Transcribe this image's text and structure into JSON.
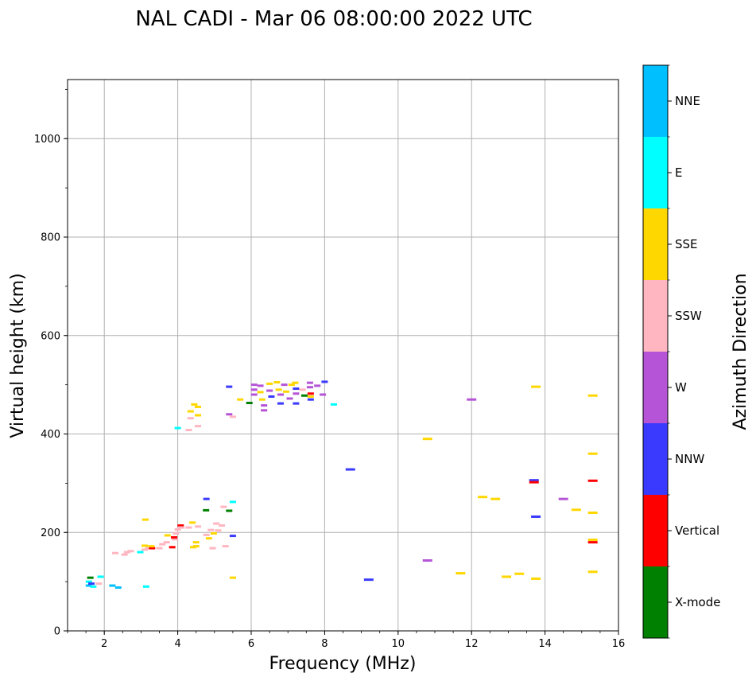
{
  "chart_data": {
    "type": "scatter",
    "title": "NAL CADI - Mar 06 08:00:00 2022 UTC",
    "xlabel": "Frequency (MHz)",
    "ylabel": "Virtual height (km)",
    "xlim": [
      1.0,
      16.0
    ],
    "ylim": [
      0,
      1120
    ],
    "x_ticks": [
      2,
      4,
      6,
      8,
      10,
      12,
      14,
      16
    ],
    "y_ticks": [
      0,
      200,
      400,
      600,
      800,
      1000
    ],
    "grid": true,
    "colorbar": {
      "label": "Azimuth Direction",
      "categories": [
        {
          "name": "X-mode",
          "color": "#008000"
        },
        {
          "name": "Vertical",
          "color": "#ff0000"
        },
        {
          "name": "NNW",
          "color": "#3a3aff"
        },
        {
          "name": "W",
          "color": "#b554d6"
        },
        {
          "name": "SSW",
          "color": "#ffb6c1"
        },
        {
          "name": "SSE",
          "color": "#ffd700"
        },
        {
          "name": "E",
          "color": "#00ffff"
        },
        {
          "name": "NNE",
          "color": "#00bfff"
        }
      ]
    },
    "points": [
      {
        "f": 1.58,
        "h": 92,
        "dir": "NNE"
      },
      {
        "f": 1.58,
        "h": 100,
        "dir": "E"
      },
      {
        "f": 1.62,
        "h": 108,
        "dir": "X-mode"
      },
      {
        "f": 1.65,
        "h": 96,
        "dir": "NNW"
      },
      {
        "f": 1.7,
        "h": 90,
        "dir": "E"
      },
      {
        "f": 1.85,
        "h": 96,
        "dir": "SSW"
      },
      {
        "f": 1.9,
        "h": 110,
        "dir": "E"
      },
      {
        "f": 2.22,
        "h": 92,
        "dir": "NNE"
      },
      {
        "f": 2.38,
        "h": 88,
        "dir": "NNE"
      },
      {
        "f": 3.14,
        "h": 90,
        "dir": "E"
      },
      {
        "f": 2.3,
        "h": 158,
        "dir": "SSW"
      },
      {
        "f": 2.55,
        "h": 155,
        "dir": "SSW"
      },
      {
        "f": 2.62,
        "h": 160,
        "dir": "SSW"
      },
      {
        "f": 2.72,
        "h": 162,
        "dir": "SSW"
      },
      {
        "f": 2.98,
        "h": 160,
        "dir": "E"
      },
      {
        "f": 3.1,
        "h": 165,
        "dir": "SSW"
      },
      {
        "f": 3.2,
        "h": 168,
        "dir": "SSW"
      },
      {
        "f": 3.3,
        "h": 168,
        "dir": "Vertical"
      },
      {
        "f": 3.5,
        "h": 168,
        "dir": "SSW"
      },
      {
        "f": 3.1,
        "h": 173,
        "dir": "SSE"
      },
      {
        "f": 3.28,
        "h": 172,
        "dir": "SSE"
      },
      {
        "f": 3.58,
        "h": 176,
        "dir": "SSW"
      },
      {
        "f": 3.7,
        "h": 180,
        "dir": "SSW"
      },
      {
        "f": 3.85,
        "h": 170,
        "dir": "Vertical"
      },
      {
        "f": 3.92,
        "h": 186,
        "dir": "SSW"
      },
      {
        "f": 3.72,
        "h": 194,
        "dir": "SSE"
      },
      {
        "f": 3.95,
        "h": 198,
        "dir": "SSW"
      },
      {
        "f": 3.9,
        "h": 190,
        "dir": "Vertical"
      },
      {
        "f": 4.0,
        "h": 206,
        "dir": "SSW"
      },
      {
        "f": 4.08,
        "h": 214,
        "dir": "Vertical"
      },
      {
        "f": 4.1,
        "h": 210,
        "dir": "SSW"
      },
      {
        "f": 4.4,
        "h": 220,
        "dir": "SSE"
      },
      {
        "f": 3.12,
        "h": 226,
        "dir": "SSE"
      },
      {
        "f": 4.3,
        "h": 210,
        "dir": "SSW"
      },
      {
        "f": 4.5,
        "h": 172,
        "dir": "SSE"
      },
      {
        "f": 4.5,
        "h": 180,
        "dir": "SSE"
      },
      {
        "f": 4.42,
        "h": 170,
        "dir": "SSE"
      },
      {
        "f": 4.55,
        "h": 212,
        "dir": "SSW"
      },
      {
        "f": 4.78,
        "h": 195,
        "dir": "SSW"
      },
      {
        "f": 4.85,
        "h": 188,
        "dir": "SSE"
      },
      {
        "f": 4.9,
        "h": 205,
        "dir": "SSW"
      },
      {
        "f": 4.95,
        "h": 168,
        "dir": "SSW"
      },
      {
        "f": 4.98,
        "h": 198,
        "dir": "SSE"
      },
      {
        "f": 5.05,
        "h": 218,
        "dir": "SSW"
      },
      {
        "f": 5.1,
        "h": 204,
        "dir": "SSW"
      },
      {
        "f": 5.2,
        "h": 214,
        "dir": "SSW"
      },
      {
        "f": 5.3,
        "h": 172,
        "dir": "SSW"
      },
      {
        "f": 4.77,
        "h": 245,
        "dir": "X-mode"
      },
      {
        "f": 4.78,
        "h": 268,
        "dir": "NNW"
      },
      {
        "f": 5.25,
        "h": 252,
        "dir": "SSW"
      },
      {
        "f": 5.4,
        "h": 244,
        "dir": "X-mode"
      },
      {
        "f": 5.5,
        "h": 262,
        "dir": "E"
      },
      {
        "f": 5.5,
        "h": 193,
        "dir": "NNW"
      },
      {
        "f": 5.5,
        "h": 108,
        "dir": "SSE"
      },
      {
        "f": 4.0,
        "h": 412,
        "dir": "E"
      },
      {
        "f": 4.3,
        "h": 408,
        "dir": "SSW"
      },
      {
        "f": 4.35,
        "h": 432,
        "dir": "SSW"
      },
      {
        "f": 4.35,
        "h": 446,
        "dir": "SSE"
      },
      {
        "f": 4.45,
        "h": 460,
        "dir": "SSE"
      },
      {
        "f": 4.55,
        "h": 455,
        "dir": "SSE"
      },
      {
        "f": 4.55,
        "h": 438,
        "dir": "SSE"
      },
      {
        "f": 4.55,
        "h": 416,
        "dir": "SSW"
      },
      {
        "f": 5.4,
        "h": 496,
        "dir": "NNW"
      },
      {
        "f": 5.4,
        "h": 440,
        "dir": "W"
      },
      {
        "f": 5.5,
        "h": 435,
        "dir": "SSW"
      },
      {
        "f": 5.7,
        "h": 470,
        "dir": "SSE"
      },
      {
        "f": 5.95,
        "h": 463,
        "dir": "X-mode"
      },
      {
        "f": 6.08,
        "h": 480,
        "dir": "W"
      },
      {
        "f": 6.08,
        "h": 490,
        "dir": "W"
      },
      {
        "f": 6.08,
        "h": 500,
        "dir": "W"
      },
      {
        "f": 6.25,
        "h": 498,
        "dir": "W"
      },
      {
        "f": 6.25,
        "h": 485,
        "dir": "SSE"
      },
      {
        "f": 6.3,
        "h": 470,
        "dir": "SSE"
      },
      {
        "f": 6.35,
        "h": 458,
        "dir": "W"
      },
      {
        "f": 6.35,
        "h": 448,
        "dir": "W"
      },
      {
        "f": 6.5,
        "h": 502,
        "dir": "SSE"
      },
      {
        "f": 6.5,
        "h": 488,
        "dir": "W"
      },
      {
        "f": 6.55,
        "h": 476,
        "dir": "NNW"
      },
      {
        "f": 6.7,
        "h": 505,
        "dir": "SSE"
      },
      {
        "f": 6.75,
        "h": 490,
        "dir": "SSE"
      },
      {
        "f": 6.8,
        "h": 480,
        "dir": "W"
      },
      {
        "f": 6.8,
        "h": 462,
        "dir": "NNW"
      },
      {
        "f": 6.9,
        "h": 500,
        "dir": "W"
      },
      {
        "f": 6.95,
        "h": 486,
        "dir": "SSE"
      },
      {
        "f": 7.05,
        "h": 472,
        "dir": "W"
      },
      {
        "f": 7.1,
        "h": 500,
        "dir": "SSE"
      },
      {
        "f": 7.2,
        "h": 504,
        "dir": "SSE"
      },
      {
        "f": 7.22,
        "h": 492,
        "dir": "NNW"
      },
      {
        "f": 7.22,
        "h": 482,
        "dir": "W"
      },
      {
        "f": 7.22,
        "h": 462,
        "dir": "NNW"
      },
      {
        "f": 7.4,
        "h": 490,
        "dir": "SSW"
      },
      {
        "f": 7.45,
        "h": 478,
        "dir": "X-mode"
      },
      {
        "f": 7.6,
        "h": 504,
        "dir": "W"
      },
      {
        "f": 7.6,
        "h": 495,
        "dir": "W"
      },
      {
        "f": 7.62,
        "h": 482,
        "dir": "Vertical"
      },
      {
        "f": 7.62,
        "h": 476,
        "dir": "SSE"
      },
      {
        "f": 7.62,
        "h": 470,
        "dir": "NNW"
      },
      {
        "f": 7.8,
        "h": 498,
        "dir": "W"
      },
      {
        "f": 7.95,
        "h": 480,
        "dir": "W"
      },
      {
        "f": 8.0,
        "h": 506,
        "dir": "NNW"
      },
      {
        "f": 8.25,
        "h": 460,
        "dir": "E"
      },
      {
        "f": 8.7,
        "h": 328,
        "dir": "NNW"
      },
      {
        "f": 9.2,
        "h": 104,
        "dir": "NNW"
      },
      {
        "f": 10.8,
        "h": 390,
        "dir": "SSE"
      },
      {
        "f": 10.8,
        "h": 143,
        "dir": "W"
      },
      {
        "f": 11.7,
        "h": 117,
        "dir": "SSE"
      },
      {
        "f": 12.0,
        "h": 470,
        "dir": "W"
      },
      {
        "f": 12.3,
        "h": 272,
        "dir": "SSE"
      },
      {
        "f": 12.65,
        "h": 268,
        "dir": "SSE"
      },
      {
        "f": 12.95,
        "h": 110,
        "dir": "SSE"
      },
      {
        "f": 13.3,
        "h": 116,
        "dir": "SSE"
      },
      {
        "f": 13.7,
        "h": 306,
        "dir": "NNW"
      },
      {
        "f": 13.7,
        "h": 302,
        "dir": "Vertical"
      },
      {
        "f": 13.75,
        "h": 232,
        "dir": "NNW"
      },
      {
        "f": 13.75,
        "h": 106,
        "dir": "SSE"
      },
      {
        "f": 13.75,
        "h": 496,
        "dir": "SSE"
      },
      {
        "f": 14.5,
        "h": 268,
        "dir": "W"
      },
      {
        "f": 14.85,
        "h": 246,
        "dir": "SSE"
      },
      {
        "f": 15.3,
        "h": 478,
        "dir": "SSE"
      },
      {
        "f": 15.3,
        "h": 360,
        "dir": "SSE"
      },
      {
        "f": 15.3,
        "h": 305,
        "dir": "Vertical"
      },
      {
        "f": 15.3,
        "h": 240,
        "dir": "SSE"
      },
      {
        "f": 15.3,
        "h": 185,
        "dir": "SSE"
      },
      {
        "f": 15.3,
        "h": 180,
        "dir": "Vertical"
      },
      {
        "f": 15.3,
        "h": 120,
        "dir": "SSE"
      }
    ]
  }
}
